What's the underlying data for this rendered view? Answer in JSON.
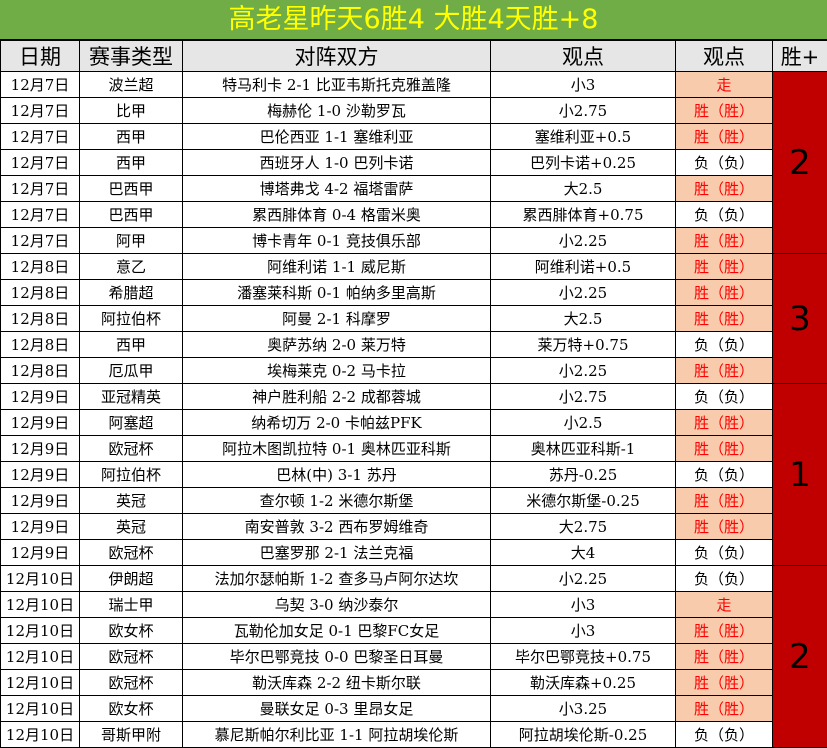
{
  "title": "高老星昨天6胜4  大胜4天胜+8",
  "headers": [
    "日期",
    "赛事类型",
    "对阵双方",
    "观点",
    "观点",
    "胜+"
  ],
  "colors": {
    "title_bg": "#70ad47",
    "title_text": "#ffff00",
    "header_bg": "#e7e6e6",
    "win_highlight": "#f8cbad",
    "win_text": "#ff0000",
    "tally_bg": "#c00000"
  },
  "rows": [
    {
      "date": "12月7日",
      "league": "波兰超",
      "match": "特马利卡 2-1 比亚韦斯托克雅盖隆",
      "pick": "小3",
      "result": "走",
      "hl": true
    },
    {
      "date": "12月7日",
      "league": "比甲",
      "match": "梅赫伦 1-0 沙勒罗瓦",
      "pick": "小2.75",
      "result": "胜（胜）",
      "hl": true
    },
    {
      "date": "12月7日",
      "league": "西甲",
      "match": "巴伦西亚 1-1 塞维利亚",
      "pick": "塞维利亚+0.5",
      "result": "胜（胜）",
      "hl": true
    },
    {
      "date": "12月7日",
      "league": "西甲",
      "match": "西班牙人 1-0 巴列卡诺",
      "pick": "巴列卡诺+0.25",
      "result": "负（负）",
      "hl": false
    },
    {
      "date": "12月7日",
      "league": "巴西甲",
      "match": "博塔弗戈 4-2 福塔雷萨",
      "pick": "大2.5",
      "result": "胜（胜）",
      "hl": true
    },
    {
      "date": "12月7日",
      "league": "巴西甲",
      "match": "累西腓体育 0-4 格雷米奥",
      "pick": "累西腓体育+0.75",
      "result": "负（负）",
      "hl": false
    },
    {
      "date": "12月7日",
      "league": "阿甲",
      "match": "博卡青年 0-1 竞技俱乐部",
      "pick": "小2.25",
      "result": "胜（胜）",
      "hl": true
    },
    {
      "date": "12月8日",
      "league": "意乙",
      "match": "阿维利诺 1-1 威尼斯",
      "pick": "阿维利诺+0.5",
      "result": "胜（胜）",
      "hl": true
    },
    {
      "date": "12月8日",
      "league": "希腊超",
      "match": "潘塞莱科斯 0-1 帕纳多里高斯",
      "pick": "小2.25",
      "result": "胜（胜）",
      "hl": true
    },
    {
      "date": "12月8日",
      "league": "阿拉伯杯",
      "match": "阿曼 2-1 科摩罗",
      "pick": "大2.5",
      "result": "胜（胜）",
      "hl": true
    },
    {
      "date": "12月8日",
      "league": "西甲",
      "match": "奥萨苏纳 2-0 莱万特",
      "pick": "莱万特+0.75",
      "result": "负（负）",
      "hl": false
    },
    {
      "date": "12月8日",
      "league": "厄瓜甲",
      "match": "埃梅莱克 0-2 马卡拉",
      "pick": "小2.25",
      "result": "胜（胜）",
      "hl": true
    },
    {
      "date": "12月9日",
      "league": "亚冠精英",
      "match": "神户胜利船 2-2 成都蓉城",
      "pick": "小2.75",
      "result": "负（负）",
      "hl": false
    },
    {
      "date": "12月9日",
      "league": "阿塞超",
      "match": "纳希切万 2-0 卡帕兹PFK",
      "pick": "小2.5",
      "result": "胜（胜）",
      "hl": true
    },
    {
      "date": "12月9日",
      "league": "欧冠杯",
      "match": "阿拉木图凯拉特 0-1 奥林匹亚科斯",
      "pick": "奥林匹亚科斯-1",
      "result": "胜（胜）",
      "hl": true
    },
    {
      "date": "12月9日",
      "league": "阿拉伯杯",
      "match": "巴林(中) 3-1 苏丹",
      "pick": "苏丹-0.25",
      "result": "负（负）",
      "hl": false
    },
    {
      "date": "12月9日",
      "league": "英冠",
      "match": "查尔顿 1-2 米德尔斯堡",
      "pick": "米德尔斯堡-0.25",
      "result": "胜（胜）",
      "hl": true
    },
    {
      "date": "12月9日",
      "league": "英冠",
      "match": "南安普敦 3-2 西布罗姆维奇",
      "pick": "大2.75",
      "result": "胜（胜）",
      "hl": true
    },
    {
      "date": "12月9日",
      "league": "欧冠杯",
      "match": "巴塞罗那 2-1 法兰克福",
      "pick": "大4",
      "result": "负（负）",
      "hl": false
    },
    {
      "date": "12月10日",
      "league": "伊朗超",
      "match": "法加尔瑟帕斯 1-2 查多马卢阿尔达坎",
      "pick": "小2.25",
      "result": "负（负）",
      "hl": false
    },
    {
      "date": "12月10日",
      "league": "瑞士甲",
      "match": "乌契 3-0 纳沙泰尔",
      "pick": "小3",
      "result": "走",
      "hl": true
    },
    {
      "date": "12月10日",
      "league": "欧女杯",
      "match": "瓦勒伦加女足 0-1 巴黎FC女足",
      "pick": "小3",
      "result": "胜（胜）",
      "hl": true
    },
    {
      "date": "12月10日",
      "league": "欧冠杯",
      "match": "毕尔巴鄂竞技 0-0 巴黎圣日耳曼",
      "pick": "毕尔巴鄂竞技+0.75",
      "result": "胜（胜）",
      "hl": true
    },
    {
      "date": "12月10日",
      "league": "欧冠杯",
      "match": "勒沃库森 2-2 纽卡斯尔联",
      "pick": "勒沃库森+0.25",
      "result": "胜（胜）",
      "hl": true
    },
    {
      "date": "12月10日",
      "league": "欧女杯",
      "match": "曼联女足 0-3 里昂女足",
      "pick": "小3.25",
      "result": "胜（胜）",
      "hl": true
    },
    {
      "date": "12月10日",
      "league": "哥斯甲附",
      "match": "慕尼斯帕尔利比亚 1-1 阿拉胡埃伦斯",
      "pick": "阿拉胡埃伦斯-0.25",
      "result": "负（负）",
      "hl": false
    }
  ],
  "tallies": [
    {
      "value": "2",
      "span": 7
    },
    {
      "value": "3",
      "span": 5
    },
    {
      "value": "1",
      "span": 7
    },
    {
      "value": "2",
      "span": 7
    }
  ]
}
